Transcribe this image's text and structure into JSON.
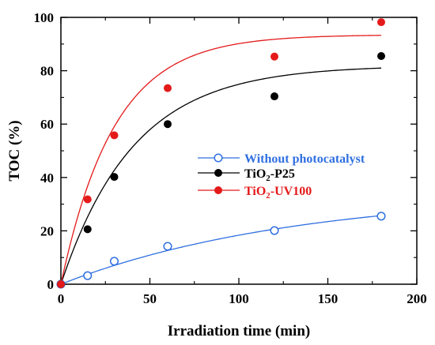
{
  "chart_data": {
    "type": "scatter",
    "xlabel": "Irradiation time (min)",
    "ylabel": "TOC (%)",
    "xlim": [
      0,
      200
    ],
    "ylim": [
      0,
      100
    ],
    "xticks": [
      0,
      50,
      100,
      150,
      200
    ],
    "yticks": [
      0,
      20,
      40,
      60,
      80,
      100
    ],
    "grid": false,
    "legend_position": "center-right",
    "series": [
      {
        "name": "Without photocatalyst",
        "legend_main": "Without photocatalyst",
        "color": "#2f6fe0",
        "marker": "open-circle",
        "x": [
          0,
          15,
          30,
          60,
          120,
          180
        ],
        "y": [
          0,
          3.2,
          8.6,
          14.2,
          20.1,
          25.5
        ],
        "fit": {
          "plateau": 34.5,
          "k": 0.0076
        }
      },
      {
        "name": "TiO2-P25",
        "legend_main": "TiO",
        "legend_sub": "2",
        "legend_rest": "-P25",
        "color": "#000000",
        "marker": "filled-circle",
        "x": [
          0,
          15,
          30,
          60,
          120,
          180
        ],
        "y": [
          0,
          20.6,
          40.2,
          60,
          70.4,
          85.5
        ],
        "fit": {
          "plateau": 82.0,
          "k": 0.0245
        }
      },
      {
        "name": "TiO2-UV100",
        "legend_main": "TiO",
        "legend_sub": "2",
        "legend_rest": "-UV100",
        "color": "#e41a1a",
        "marker": "filled-circle",
        "x": [
          0,
          15,
          30,
          60,
          120,
          180
        ],
        "y": [
          0,
          31.8,
          55.8,
          73.5,
          85.3,
          98.2
        ],
        "fit": {
          "plateau": 93.5,
          "k": 0.0333
        }
      }
    ]
  }
}
